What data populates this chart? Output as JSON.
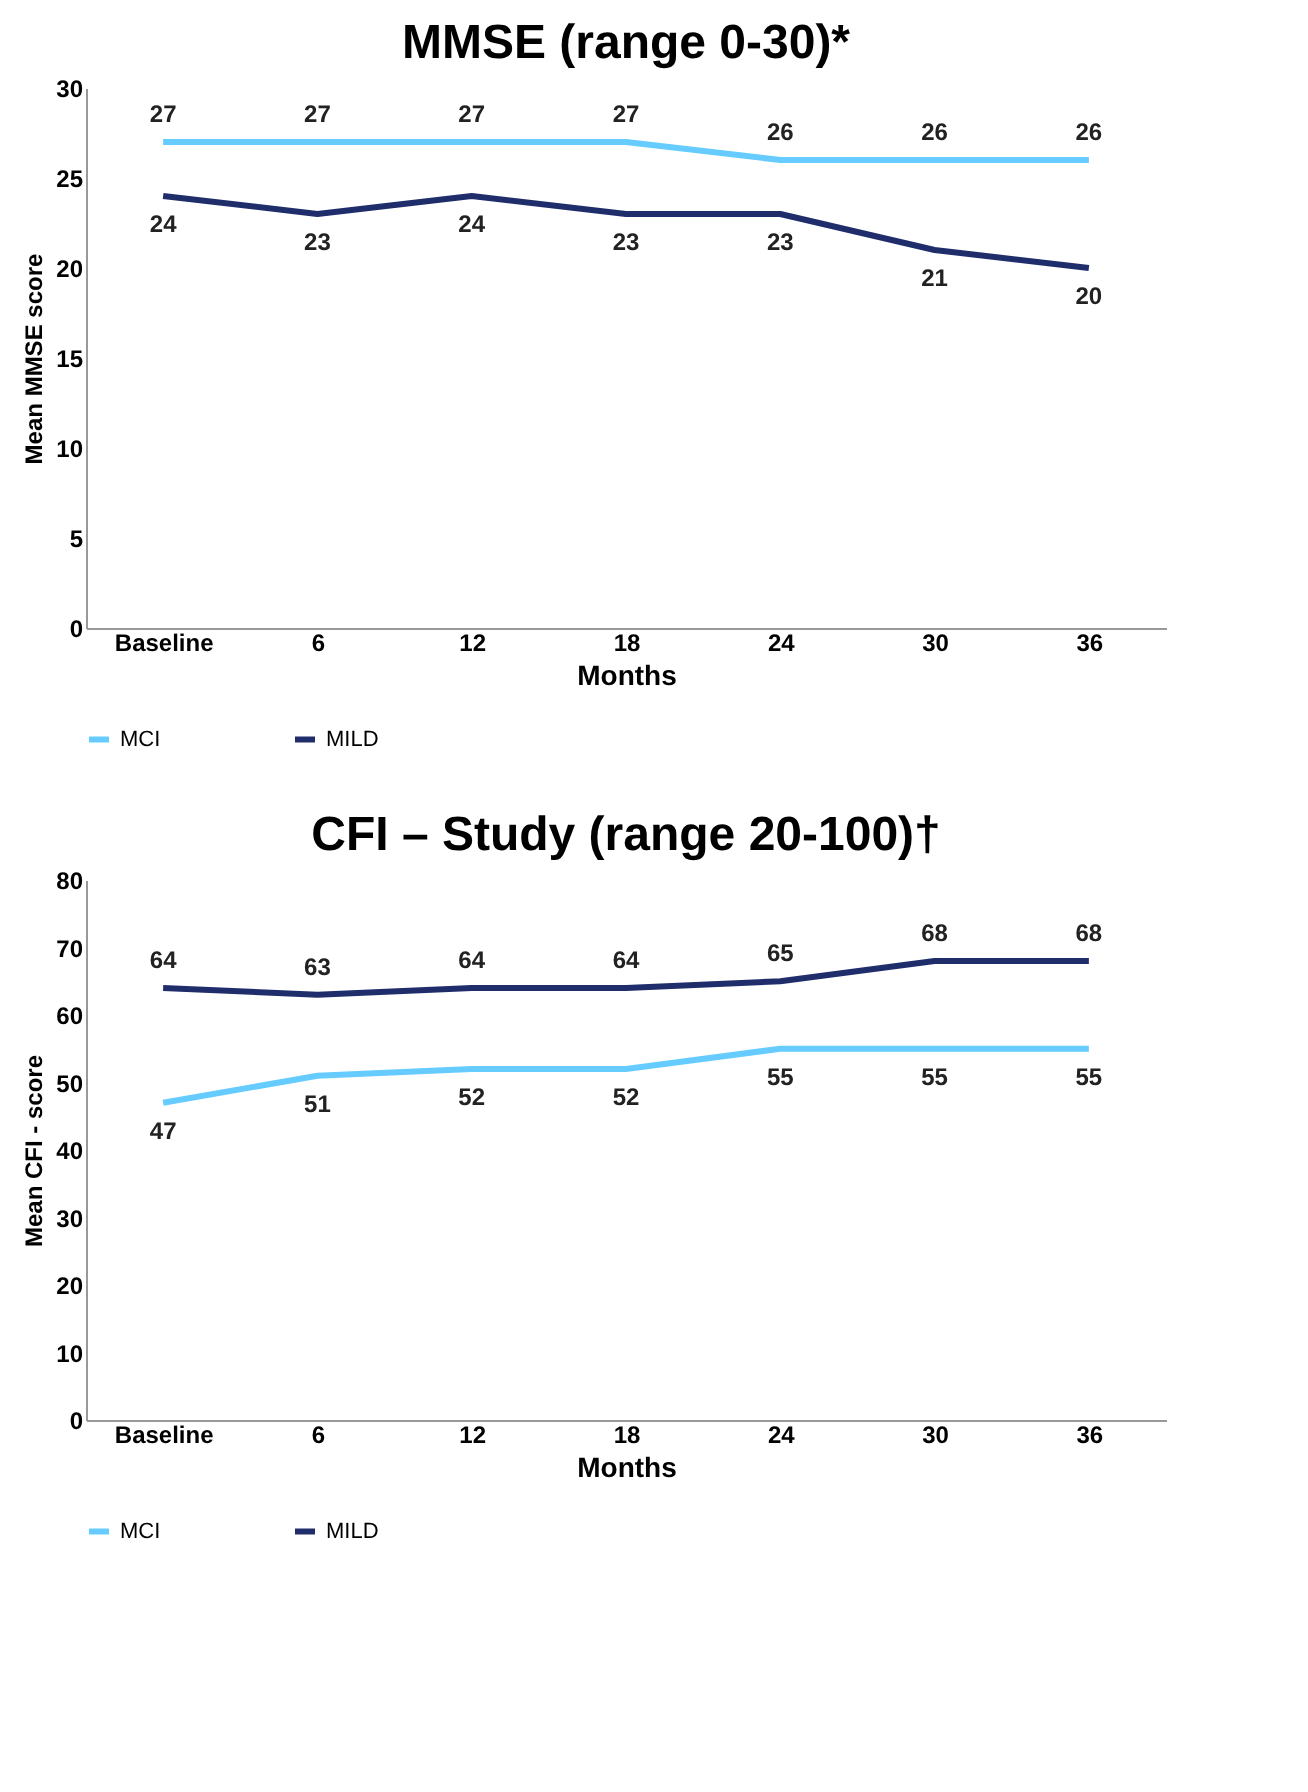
{
  "chart_data": [
    {
      "type": "line",
      "title": "MMSE (range 0-30)*",
      "xlabel": "Months",
      "ylabel": "Mean MMSE score",
      "categories": [
        "Baseline",
        "6",
        "12",
        "18",
        "24",
        "30",
        "36"
      ],
      "series": [
        {
          "name": "MCI",
          "color": "#66ccff",
          "values": [
            27,
            27,
            27,
            27,
            26,
            26,
            26
          ]
        },
        {
          "name": "MILD",
          "color": "#1f2d6b",
          "values": [
            24,
            23,
            24,
            23,
            23,
            21,
            20
          ]
        }
      ],
      "ylim": [
        0,
        30
      ],
      "yticks": [
        0,
        5,
        10,
        15,
        20,
        25,
        30
      ],
      "grid": false,
      "legend": "bottom",
      "data_labels": true
    },
    {
      "type": "line",
      "title": "CFI – Study (range 20-100)†",
      "xlabel": "Months",
      "ylabel": "Mean CFI - score",
      "categories": [
        "Baseline",
        "6",
        "12",
        "18",
        "24",
        "30",
        "36"
      ],
      "series": [
        {
          "name": "MCI",
          "color": "#66ccff",
          "values": [
            47,
            51,
            52,
            52,
            55,
            55,
            55
          ]
        },
        {
          "name": "MILD",
          "color": "#1f2d6b",
          "values": [
            64,
            63,
            64,
            64,
            65,
            68,
            68
          ]
        }
      ],
      "ylim": [
        0,
        80
      ],
      "yticks": [
        0,
        10,
        20,
        30,
        40,
        50,
        60,
        70,
        80
      ],
      "grid": false,
      "legend": "bottom",
      "data_labels": true
    }
  ]
}
